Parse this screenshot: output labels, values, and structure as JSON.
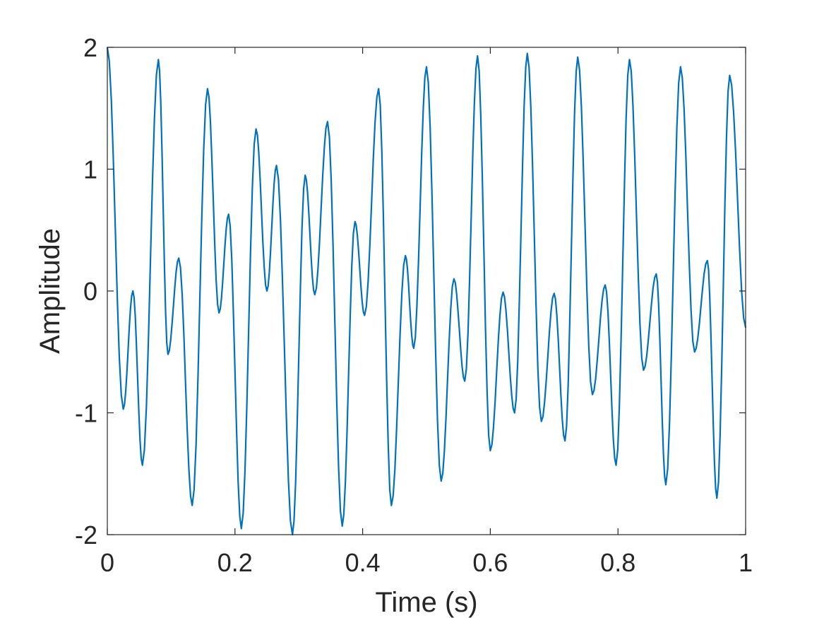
{
  "chart_data": {
    "type": "line",
    "title": "",
    "xlabel": "Time (s)",
    "ylabel": "Amplitude",
    "xlim": [
      0,
      1
    ],
    "ylim": [
      -2,
      2
    ],
    "x_ticks": [
      0,
      0.2,
      0.4,
      0.6,
      0.8,
      1
    ],
    "x_tick_labels": [
      "0",
      "0.2",
      "0.4",
      "0.6",
      "0.8",
      "1"
    ],
    "y_ticks": [
      -2,
      -1,
      0,
      1,
      2
    ],
    "y_tick_labels": [
      "-2",
      "-1",
      "0",
      "1",
      "2"
    ],
    "grid": false,
    "line_color": "#0072BD",
    "axis_color": "#262626",
    "series": [
      {
        "x": [
          0,
          0.025,
          0.04,
          0.055,
          0.08,
          0.095,
          0.112,
          0.133,
          0.157,
          0.175,
          0.19,
          0.21,
          0.233,
          0.25,
          0.265,
          0.29,
          0.31,
          0.325,
          0.345,
          0.368,
          0.388,
          0.403,
          0.425,
          0.445,
          0.467,
          0.48,
          0.5,
          0.523,
          0.543,
          0.56,
          0.58,
          0.6,
          0.62,
          0.638,
          0.658,
          0.68,
          0.7,
          0.717,
          0.737,
          0.76,
          0.78,
          0.797,
          0.818,
          0.84,
          0.86,
          0.875,
          0.898,
          0.92,
          0.94,
          0.955,
          0.975,
          1.0
        ],
        "y": [
          2.0,
          -0.97,
          0.0,
          -1.43,
          1.9,
          -0.52,
          0.27,
          -1.76,
          1.66,
          -0.18,
          0.63,
          -1.95,
          1.33,
          0.0,
          1.03,
          -2.0,
          0.95,
          -0.03,
          1.39,
          -1.93,
          0.57,
          -0.2,
          1.66,
          -1.76,
          0.29,
          -0.47,
          1.84,
          -1.56,
          0.1,
          -0.74,
          1.93,
          -1.31,
          -0.01,
          -1.0,
          1.95,
          -1.07,
          -0.02,
          -1.23,
          1.92,
          -0.85,
          0.05,
          -1.43,
          1.9,
          -0.65,
          0.14,
          -1.59,
          1.84,
          -0.5,
          0.25,
          -1.7,
          1.77,
          -0.3
        ]
      }
    ]
  }
}
